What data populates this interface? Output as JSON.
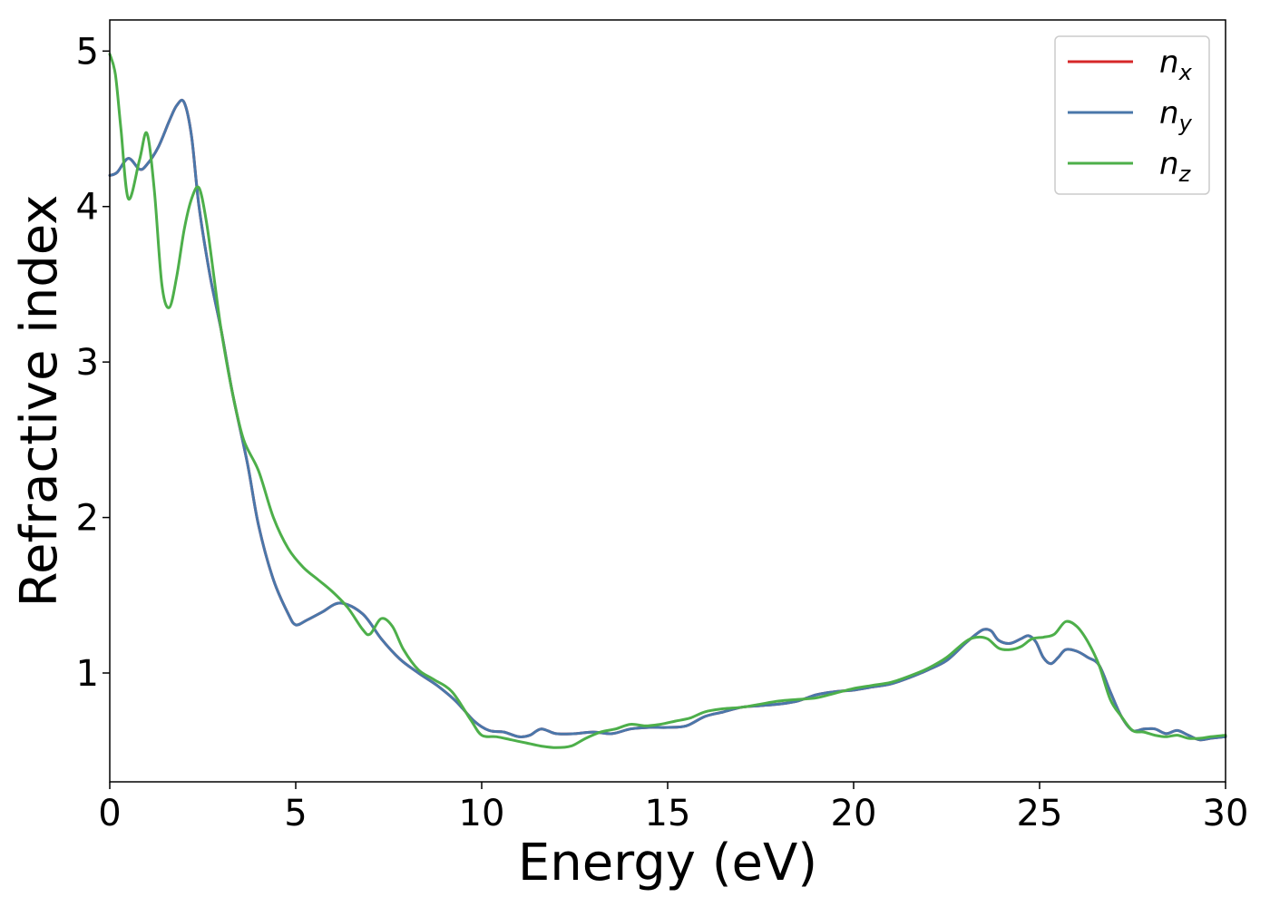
{
  "chart_data": {
    "type": "line",
    "title": "",
    "xlabel": "Energy (eV)",
    "ylabel": "Refractive index",
    "xlim": [
      0,
      30
    ],
    "ylim": [
      0.3,
      5.2
    ],
    "xticks": [
      0,
      5,
      10,
      15,
      20,
      25,
      30
    ],
    "yticks": [
      1,
      2,
      3,
      4,
      5
    ],
    "grid": false,
    "legend_position": "top-right",
    "series": [
      {
        "name": "n_x",
        "label_main": "n",
        "label_sub": "x",
        "color": "#d62728",
        "x": [
          0,
          0.2,
          0.5,
          0.8,
          1.0,
          1.3,
          1.6,
          1.8,
          2.0,
          2.2,
          2.4,
          2.7,
          3.0,
          3.3,
          3.7,
          4.0,
          4.4,
          4.8,
          5.0,
          5.3,
          5.7,
          6.2,
          6.8,
          7.3,
          7.8,
          8.3,
          8.8,
          9.3,
          9.8,
          10.2,
          10.6,
          11.0,
          11.3,
          11.6,
          12.0,
          12.5,
          13.0,
          13.5,
          14.0,
          14.5,
          15.0,
          15.5,
          16.0,
          16.5,
          17.0,
          17.5,
          18.0,
          18.5,
          19.0,
          19.5,
          20.0,
          20.5,
          21.0,
          21.5,
          22.0,
          22.5,
          23.0,
          23.3,
          23.5,
          23.7,
          23.9,
          24.2,
          24.5,
          24.7,
          24.9,
          25.1,
          25.3,
          25.5,
          25.7,
          26.0,
          26.3,
          26.6,
          26.9,
          27.2,
          27.5,
          27.8,
          28.1,
          28.4,
          28.7,
          29.0,
          29.3,
          29.6,
          30.0
        ],
        "y": [
          4.2,
          4.22,
          4.31,
          4.24,
          4.27,
          4.38,
          4.55,
          4.65,
          4.67,
          4.45,
          4.0,
          3.55,
          3.2,
          2.8,
          2.35,
          1.95,
          1.6,
          1.38,
          1.31,
          1.34,
          1.39,
          1.45,
          1.38,
          1.22,
          1.09,
          1.0,
          0.92,
          0.82,
          0.69,
          0.63,
          0.62,
          0.59,
          0.6,
          0.64,
          0.61,
          0.61,
          0.62,
          0.61,
          0.64,
          0.65,
          0.65,
          0.66,
          0.72,
          0.75,
          0.78,
          0.79,
          0.8,
          0.82,
          0.86,
          0.88,
          0.89,
          0.91,
          0.93,
          0.97,
          1.02,
          1.08,
          1.19,
          1.25,
          1.28,
          1.27,
          1.21,
          1.19,
          1.22,
          1.24,
          1.2,
          1.1,
          1.06,
          1.1,
          1.15,
          1.14,
          1.1,
          1.05,
          0.88,
          0.72,
          0.63,
          0.64,
          0.64,
          0.61,
          0.63,
          0.6,
          0.57,
          0.58,
          0.59
        ]
      },
      {
        "name": "n_y",
        "label_main": "n",
        "label_sub": "y",
        "color": "#4a77aa",
        "x": [
          0,
          0.2,
          0.5,
          0.8,
          1.0,
          1.3,
          1.6,
          1.8,
          2.0,
          2.2,
          2.4,
          2.7,
          3.0,
          3.3,
          3.7,
          4.0,
          4.4,
          4.8,
          5.0,
          5.3,
          5.7,
          6.2,
          6.8,
          7.3,
          7.8,
          8.3,
          8.8,
          9.3,
          9.8,
          10.2,
          10.6,
          11.0,
          11.3,
          11.6,
          12.0,
          12.5,
          13.0,
          13.5,
          14.0,
          14.5,
          15.0,
          15.5,
          16.0,
          16.5,
          17.0,
          17.5,
          18.0,
          18.5,
          19.0,
          19.5,
          20.0,
          20.5,
          21.0,
          21.5,
          22.0,
          22.5,
          23.0,
          23.3,
          23.5,
          23.7,
          23.9,
          24.2,
          24.5,
          24.7,
          24.9,
          25.1,
          25.3,
          25.5,
          25.7,
          26.0,
          26.3,
          26.6,
          26.9,
          27.2,
          27.5,
          27.8,
          28.1,
          28.4,
          28.7,
          29.0,
          29.3,
          29.6,
          30.0
        ],
        "y": [
          4.2,
          4.22,
          4.31,
          4.24,
          4.27,
          4.38,
          4.55,
          4.65,
          4.67,
          4.45,
          4.0,
          3.55,
          3.2,
          2.8,
          2.35,
          1.95,
          1.6,
          1.38,
          1.31,
          1.34,
          1.39,
          1.45,
          1.38,
          1.22,
          1.09,
          1.0,
          0.92,
          0.82,
          0.69,
          0.63,
          0.62,
          0.59,
          0.6,
          0.64,
          0.61,
          0.61,
          0.62,
          0.61,
          0.64,
          0.65,
          0.65,
          0.66,
          0.72,
          0.75,
          0.78,
          0.79,
          0.8,
          0.82,
          0.86,
          0.88,
          0.89,
          0.91,
          0.93,
          0.97,
          1.02,
          1.08,
          1.19,
          1.25,
          1.28,
          1.27,
          1.21,
          1.19,
          1.22,
          1.24,
          1.2,
          1.1,
          1.06,
          1.1,
          1.15,
          1.14,
          1.1,
          1.05,
          0.88,
          0.72,
          0.63,
          0.64,
          0.64,
          0.61,
          0.63,
          0.6,
          0.57,
          0.58,
          0.59
        ]
      },
      {
        "name": "n_z",
        "label_main": "n",
        "label_sub": "z",
        "color": "#4daf4a",
        "x": [
          0,
          0.15,
          0.3,
          0.5,
          0.8,
          1.0,
          1.2,
          1.4,
          1.6,
          1.8,
          2.0,
          2.2,
          2.4,
          2.6,
          2.8,
          3.0,
          3.3,
          3.6,
          4.0,
          4.4,
          4.8,
          5.2,
          5.6,
          6.0,
          6.4,
          6.8,
          7.0,
          7.3,
          7.6,
          7.9,
          8.3,
          8.7,
          9.2,
          9.7,
          10.0,
          10.4,
          10.8,
          11.2,
          11.6,
          12.0,
          12.4,
          12.8,
          13.2,
          13.6,
          14.0,
          14.4,
          14.8,
          15.2,
          15.6,
          16.0,
          16.5,
          17.0,
          17.5,
          18.0,
          18.5,
          19.0,
          19.5,
          20.0,
          20.5,
          21.0,
          21.5,
          22.0,
          22.5,
          23.0,
          23.3,
          23.6,
          23.9,
          24.2,
          24.5,
          24.8,
          25.1,
          25.4,
          25.7,
          26.0,
          26.3,
          26.6,
          26.9,
          27.2,
          27.5,
          27.8,
          28.1,
          28.4,
          28.7,
          29.0,
          29.3,
          29.6,
          30.0
        ],
        "y": [
          4.98,
          4.85,
          4.5,
          4.05,
          4.3,
          4.47,
          4.1,
          3.5,
          3.35,
          3.55,
          3.85,
          4.05,
          4.12,
          3.9,
          3.55,
          3.2,
          2.8,
          2.5,
          2.3,
          2.0,
          1.8,
          1.68,
          1.6,
          1.52,
          1.42,
          1.28,
          1.25,
          1.35,
          1.3,
          1.15,
          1.02,
          0.96,
          0.88,
          0.7,
          0.6,
          0.59,
          0.57,
          0.55,
          0.53,
          0.52,
          0.53,
          0.58,
          0.62,
          0.64,
          0.67,
          0.66,
          0.67,
          0.69,
          0.71,
          0.75,
          0.77,
          0.78,
          0.8,
          0.82,
          0.83,
          0.84,
          0.87,
          0.9,
          0.92,
          0.94,
          0.98,
          1.03,
          1.1,
          1.2,
          1.23,
          1.22,
          1.16,
          1.15,
          1.17,
          1.22,
          1.23,
          1.25,
          1.33,
          1.3,
          1.2,
          1.05,
          0.83,
          0.72,
          0.63,
          0.62,
          0.6,
          0.59,
          0.6,
          0.58,
          0.58,
          0.59,
          0.6
        ]
      }
    ]
  }
}
